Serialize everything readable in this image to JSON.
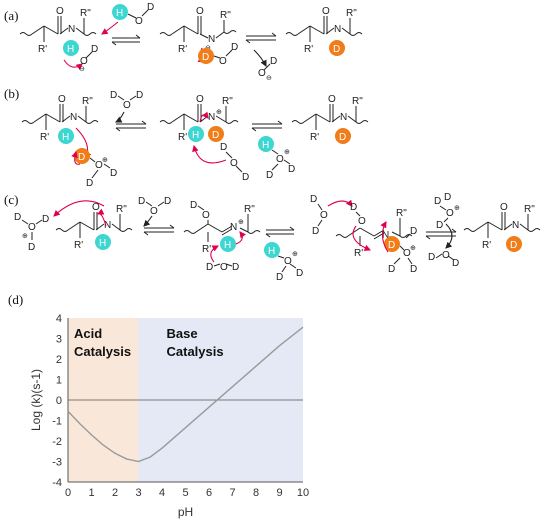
{
  "panels": {
    "a": "(a)",
    "b": "(b)",
    "c": "(c)",
    "d": "(d)"
  },
  "atoms": {
    "H": "H",
    "D": "D",
    "N": "N",
    "O": "O",
    "R1": "R'",
    "R2": "R\""
  },
  "colors": {
    "hydrogen": "#3dd6d0",
    "deuterium": "#f07d1a",
    "arrow": "#e0004d",
    "acid_region": "#f9e7da",
    "base_region": "#e4e9f5",
    "curve": "#9a9a9a"
  },
  "chart_data": {
    "type": "line",
    "xlabel": "pH",
    "ylabel": "Log (k)(s-1)",
    "xlim": [
      0,
      10
    ],
    "ylim": [
      -4,
      4
    ],
    "xticks": [
      "0",
      "1",
      "2",
      "3",
      "4",
      "5",
      "6",
      "7",
      "8",
      "9",
      "10"
    ],
    "yticks": [
      "4",
      "3",
      "2",
      "1",
      "0",
      "-1",
      "-2",
      "-3",
      "-4"
    ],
    "regions": [
      {
        "label_line1": "Acid",
        "label_line2": "Catalysis",
        "x_from": 0,
        "x_to": 3
      },
      {
        "label_line1": "Base",
        "label_line2": "Catalysis",
        "x_from": 3,
        "x_to": 10
      }
    ],
    "series": [
      {
        "x": [
          0,
          0.5,
          1,
          1.5,
          2,
          2.5,
          3,
          3.5,
          4,
          4.5,
          5,
          5.5,
          6,
          6.5,
          7,
          7.5,
          8,
          8.5,
          9,
          9.5,
          10
        ],
        "y": [
          -0.55,
          -1.15,
          -1.7,
          -2.2,
          -2.6,
          -2.88,
          -3.0,
          -2.78,
          -2.35,
          -1.85,
          -1.35,
          -0.85,
          -0.35,
          0.15,
          0.65,
          1.15,
          1.65,
          2.15,
          2.65,
          3.1,
          3.55
        ]
      }
    ],
    "grid": false,
    "zero_line": true
  }
}
